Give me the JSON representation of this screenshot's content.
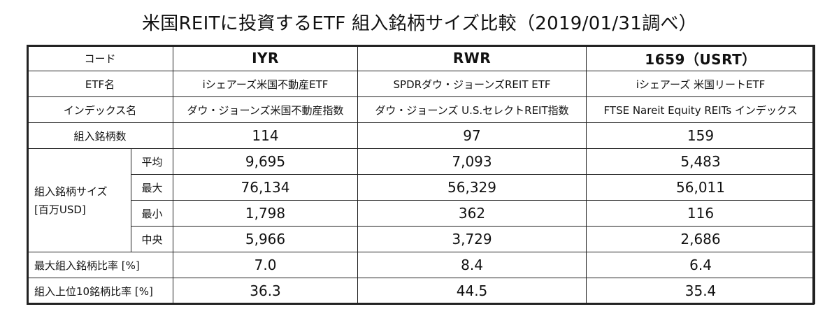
{
  "title": "米国REITに投資するETF 組入銘柄サイズ比較（2019/01/31調べ）",
  "rows": {
    "code_label": "コード",
    "etf_name_label": "ETF名",
    "index_label": "インデックス名",
    "holdings_label": "組入銘柄数",
    "size_label_line1": "組入銘柄サイズ",
    "size_label_line2": "[百万USD]",
    "avg_label": "平均",
    "max_label": "最大",
    "min_label": "最小",
    "median_label": "中央",
    "top_weight_label": "最大組入銘柄比率 [%]",
    "top10_weight_label": "組入上位10銘柄比率 [%]"
  },
  "funds": [
    {
      "code": "IYR",
      "etf_name": "iシェアーズ米国不動産ETF",
      "index": "ダウ・ジョーンズ米国不動産指数",
      "holdings": "114",
      "avg": "9,695",
      "max": "76,134",
      "min": "1,798",
      "median": "5,966",
      "top_weight": "7.0",
      "top10_weight": "36.3"
    },
    {
      "code": "RWR",
      "etf_name": "SPDRダウ・ジョーンズREIT ETF",
      "index": "ダウ・ジョーンズ U.S.セレクトREIT指数",
      "holdings": "97",
      "avg": "7,093",
      "max": "56,329",
      "min": "362",
      "median": "3,729",
      "top_weight": "8.4",
      "top10_weight": "44.5"
    },
    {
      "code": "1659（USRT）",
      "etf_name": "iシェアーズ 米国リートETF",
      "index": "FTSE Nareit Equity REITs インデックス",
      "holdings": "159",
      "avg": "5,483",
      "max": "56,011",
      "min": "116",
      "median": "2,686",
      "top_weight": "6.4",
      "top10_weight": "35.4"
    }
  ]
}
